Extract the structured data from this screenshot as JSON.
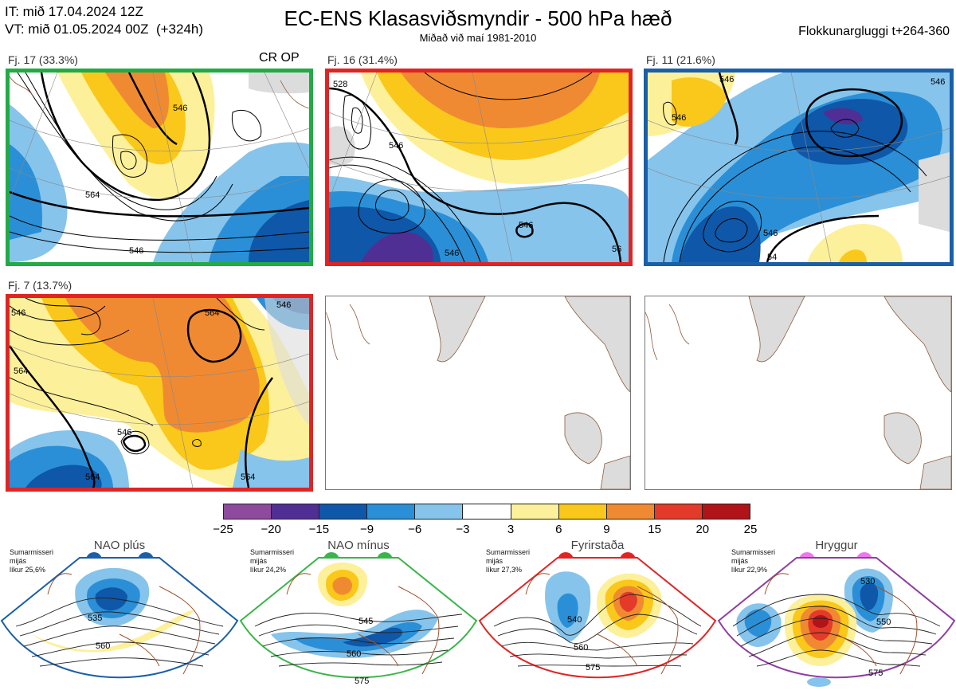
{
  "header": {
    "it_line": "IT: mið 17.04.2024 12Z",
    "vt_line": "VT: mið 01.05.2024 00Z  (+324h)",
    "title": "EC-ENS Klasasviðsmyndir - 500 hPa hæð",
    "subtitle": "Miðað við maí 1981-2010",
    "window": "Flokkunargluggi t+264-360"
  },
  "panels": [
    {
      "label": "Fj. 17 (33.3%)",
      "tag": "CR OP",
      "border": "#22aa44",
      "contours": [
        "546",
        "564",
        "546"
      ]
    },
    {
      "label": "Fj. 16 (31.4%)",
      "border": "#e02424",
      "contours": [
        "528",
        "546",
        "546",
        "546",
        "56"
      ]
    },
    {
      "label": "Fj. 11 (21.6%)",
      "border": "#1a5fa8",
      "contours": [
        "546",
        "546",
        "546",
        "54",
        "546"
      ]
    },
    {
      "label": "Fj. 7 (13.7%)",
      "border": "#e02424",
      "contours": [
        "546",
        "564",
        "564",
        "564",
        "546",
        "564",
        "546"
      ]
    }
  ],
  "colorbar": {
    "ticks": [
      "−25",
      "−20",
      "−15",
      "−9",
      "−6",
      "−3",
      "3",
      "6",
      "9",
      "15",
      "20",
      "25"
    ],
    "colors": [
      "#8e4b9e",
      "#4f2f94",
      "#0f57a8",
      "#2a8fd6",
      "#86c4ec",
      "#ffffff",
      "#fdf09a",
      "#f9c81a",
      "#f08a32",
      "#e33a2a",
      "#b01419"
    ]
  },
  "regimes": [
    {
      "title": "NAO plús",
      "info": "Sumarmisseri\nmijás\nlíkur 25,6%",
      "color": "#1a5fa8",
      "contours": [
        "535",
        "560"
      ]
    },
    {
      "title": "NAO mínus",
      "info": "Sumarmisseri\nmijás\nlíkur 24,2%",
      "color": "#3ab54a",
      "contours": [
        "545",
        "560",
        "575"
      ]
    },
    {
      "title": "Fyrirstaða",
      "info": "Sumarmisseri\nmijás\nlíkur 27,3%",
      "color": "#e02424",
      "contours": [
        "540",
        "560",
        "575"
      ]
    },
    {
      "title": "Hryggur",
      "info": "Sumarmisseri\nmijás\nlíkur 22,9%",
      "color": "#ee77ee",
      "contours": [
        "530",
        "550",
        "575"
      ]
    }
  ]
}
